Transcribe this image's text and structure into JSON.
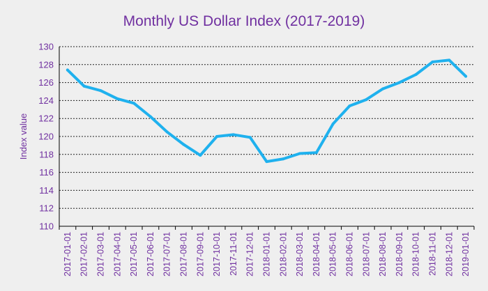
{
  "chart_data": {
    "type": "line",
    "title": "Monthly US Dollar Index (2017-2019)",
    "xlabel": "",
    "ylabel": "Index value",
    "ylim": [
      110,
      130
    ],
    "yticks": [
      110,
      112,
      114,
      116,
      118,
      120,
      122,
      124,
      126,
      128,
      130
    ],
    "grid": true,
    "categories": [
      "2017-01-01",
      "2017-02-01",
      "2017-03-01",
      "2017-04-01",
      "2017-05-01",
      "2017-06-01",
      "2017-07-01",
      "2017-08-01",
      "2017-09-01",
      "2017-10-01",
      "2017-11-01",
      "2017-12-01",
      "2018-01-01",
      "2018-02-01",
      "2018-03-01",
      "2018-04-01",
      "2018-05-01",
      "2018-06-01",
      "2018-07-01",
      "2018-08-01",
      "2018-09-01",
      "2018-10-01",
      "2018-11-01",
      "2018-12-01",
      "2019-01-01"
    ],
    "series": [
      {
        "name": "US Dollar Index",
        "color": "#1fb1ee",
        "values": [
          127.4,
          125.6,
          125.1,
          124.2,
          123.7,
          122.2,
          120.5,
          119.1,
          117.9,
          120.0,
          120.2,
          119.9,
          117.2,
          117.5,
          118.1,
          118.2,
          121.4,
          123.4,
          124.1,
          125.3,
          126.0,
          126.9,
          128.3,
          128.5,
          126.7
        ]
      }
    ]
  }
}
